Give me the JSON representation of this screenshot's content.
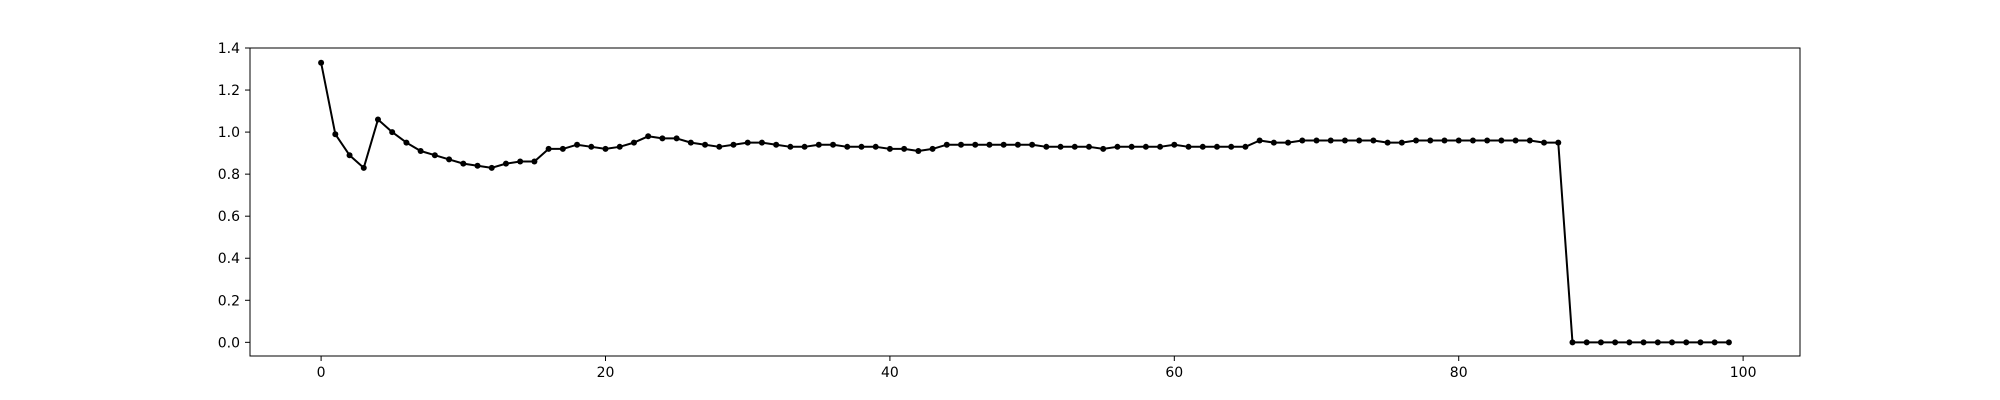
{
  "chart_data": {
    "type": "line",
    "title": "",
    "xlabel": "",
    "ylabel": "",
    "xlim": [
      -5,
      104
    ],
    "ylim": [
      -0.065,
      1.4
    ],
    "xticks": [
      0,
      20,
      40,
      60,
      80,
      100
    ],
    "yticks": [
      0.0,
      0.2,
      0.4,
      0.6,
      0.8,
      1.0,
      1.2,
      1.4
    ],
    "xtick_labels": [
      "0",
      "20",
      "40",
      "60",
      "80",
      "100"
    ],
    "ytick_labels": [
      "0.0",
      "0.2",
      "0.4",
      "0.6",
      "0.8",
      "1.0",
      "1.2",
      "1.4"
    ],
    "grid": false,
    "line_color": "#000000",
    "series": [
      {
        "x": [
          0,
          1,
          2,
          3,
          4,
          5,
          6,
          7,
          8,
          9,
          10,
          11,
          12,
          13,
          14,
          15,
          16,
          17,
          18,
          19,
          20,
          21,
          22,
          23,
          24,
          25,
          26,
          27,
          28,
          29,
          30,
          31,
          32,
          33,
          34,
          35,
          36,
          37,
          38,
          39,
          40,
          41,
          42,
          43,
          44,
          45,
          46,
          47,
          48,
          49,
          50,
          51,
          52,
          53,
          54,
          55,
          56,
          57,
          58,
          59,
          60,
          61,
          62,
          63,
          64,
          65,
          66,
          67,
          68,
          69,
          70,
          71,
          72,
          73,
          74,
          75,
          76,
          77,
          78,
          79,
          80,
          81,
          82,
          83,
          84,
          85,
          86,
          87,
          88,
          89,
          90,
          91,
          92,
          93,
          94,
          95,
          96,
          97,
          98,
          99
        ],
        "y": [
          1.33,
          0.99,
          0.89,
          0.83,
          1.06,
          1.0,
          0.95,
          0.91,
          0.89,
          0.87,
          0.85,
          0.84,
          0.83,
          0.85,
          0.86,
          0.86,
          0.92,
          0.92,
          0.94,
          0.93,
          0.92,
          0.93,
          0.95,
          0.98,
          0.97,
          0.97,
          0.95,
          0.94,
          0.93,
          0.94,
          0.95,
          0.95,
          0.94,
          0.93,
          0.93,
          0.94,
          0.94,
          0.93,
          0.93,
          0.93,
          0.92,
          0.92,
          0.91,
          0.92,
          0.94,
          0.94,
          0.94,
          0.94,
          0.94,
          0.94,
          0.94,
          0.93,
          0.93,
          0.93,
          0.93,
          0.92,
          0.93,
          0.93,
          0.93,
          0.93,
          0.94,
          0.93,
          0.93,
          0.93,
          0.93,
          0.93,
          0.96,
          0.95,
          0.95,
          0.96,
          0.96,
          0.96,
          0.96,
          0.96,
          0.96,
          0.95,
          0.95,
          0.96,
          0.96,
          0.96,
          0.96,
          0.96,
          0.96,
          0.96,
          0.96,
          0.96,
          0.95,
          0.95,
          0.0,
          0.0,
          0.0,
          0.0,
          0.0,
          0.0,
          0.0,
          0.0,
          0.0,
          0.0,
          0.0,
          0.0
        ]
      }
    ]
  }
}
